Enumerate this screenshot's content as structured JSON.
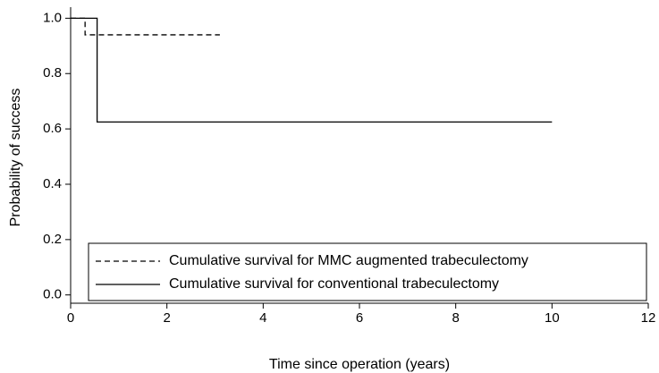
{
  "chart_data": {
    "type": "step",
    "x_label": "Time since operation (years)",
    "y_label": "Probability of success",
    "series": [
      {
        "name": "Cumulative survival for MMC augmented trabeculectomy",
        "color": "#000000",
        "linestyle": "dashed",
        "x": [
          0,
          0.3,
          3.1
        ],
        "values": [
          1.0,
          0.94,
          0.94
        ]
      },
      {
        "name": "Cumulative survival for conventional trabeculectomy",
        "color": "#000000",
        "linestyle": "solid",
        "x": [
          0,
          0.55,
          10
        ],
        "values": [
          1.0,
          0.625,
          0.625
        ]
      }
    ],
    "xlim": [
      0,
      12
    ],
    "xticks": [
      0,
      2,
      4,
      6,
      8,
      10,
      12
    ],
    "ylim": [
      -0.03,
      1.04
    ],
    "yticks": [
      {
        "value": 0,
        "label": "0.0"
      },
      0.2,
      0.4,
      0.6,
      0.8,
      {
        "value": 1,
        "label": "1.0"
      }
    ],
    "legend": "lower right"
  }
}
